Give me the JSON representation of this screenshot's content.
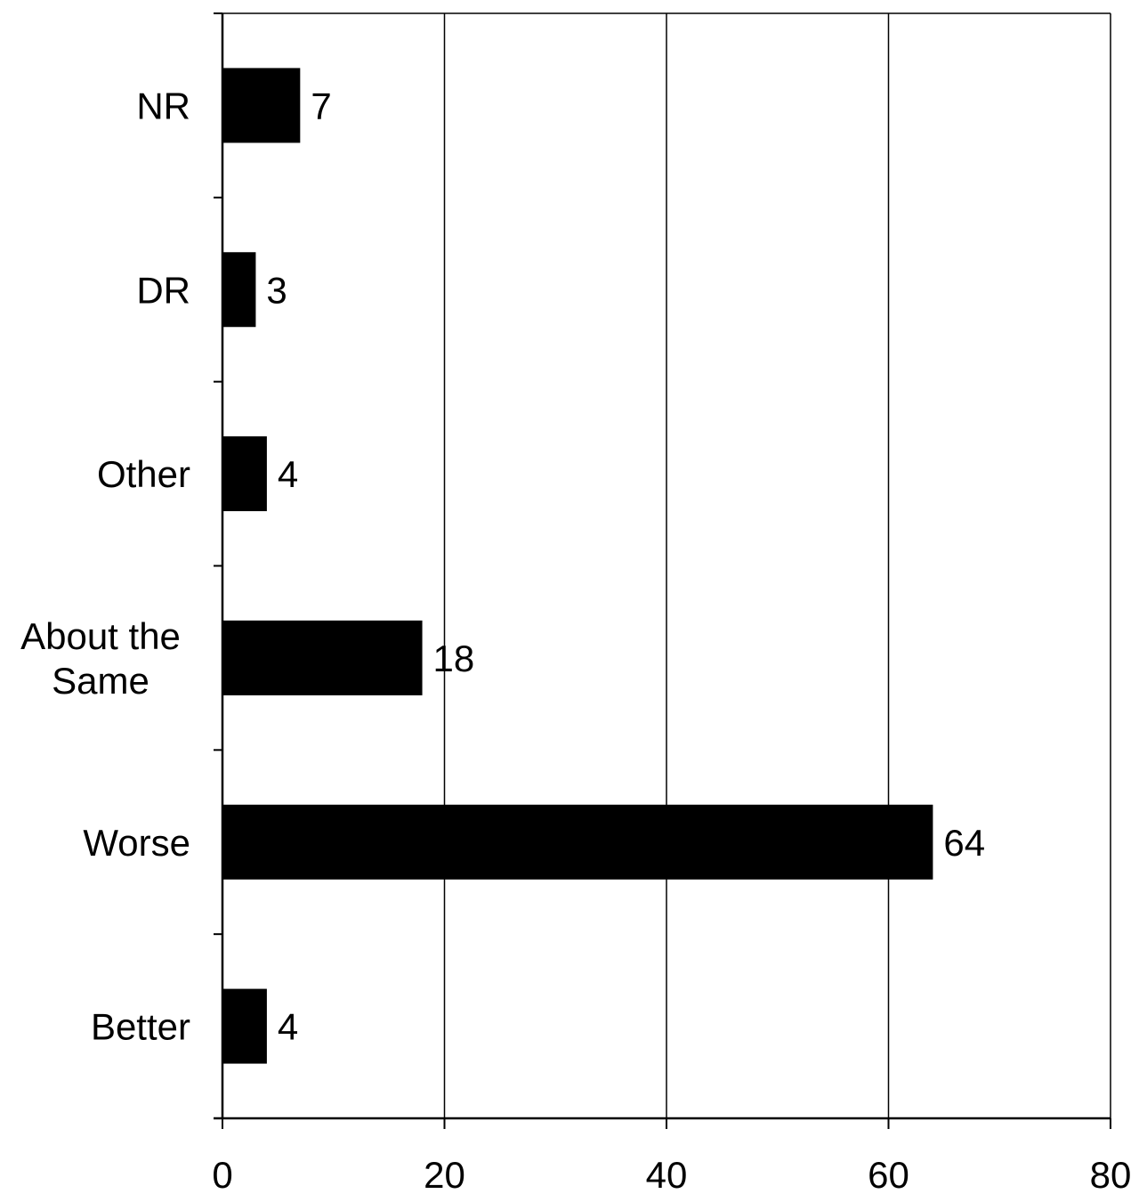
{
  "chart_data": {
    "type": "bar",
    "orientation": "horizontal",
    "title": "",
    "xlabel": "",
    "ylabel": "",
    "categories": [
      "NR",
      "DR",
      "Other",
      "About the Same",
      "Worse",
      "Better"
    ],
    "category_lines": [
      [
        "NR"
      ],
      [
        "DR"
      ],
      [
        "Other"
      ],
      [
        "About the",
        "Same"
      ],
      [
        "Worse"
      ],
      [
        "Better"
      ]
    ],
    "values": [
      7,
      3,
      4,
      18,
      64,
      4
    ],
    "data_labels": [
      "7",
      "3",
      "4",
      "18",
      "64",
      "4"
    ],
    "xlim": [
      0,
      80
    ],
    "xticks": [
      0,
      20,
      40,
      60,
      80
    ],
    "xtick_labels": [
      "0",
      "20",
      "40",
      "60",
      "80"
    ],
    "grid": "vertical",
    "legend": "none",
    "bar_color": "#000000",
    "grid_color": "#000000"
  }
}
